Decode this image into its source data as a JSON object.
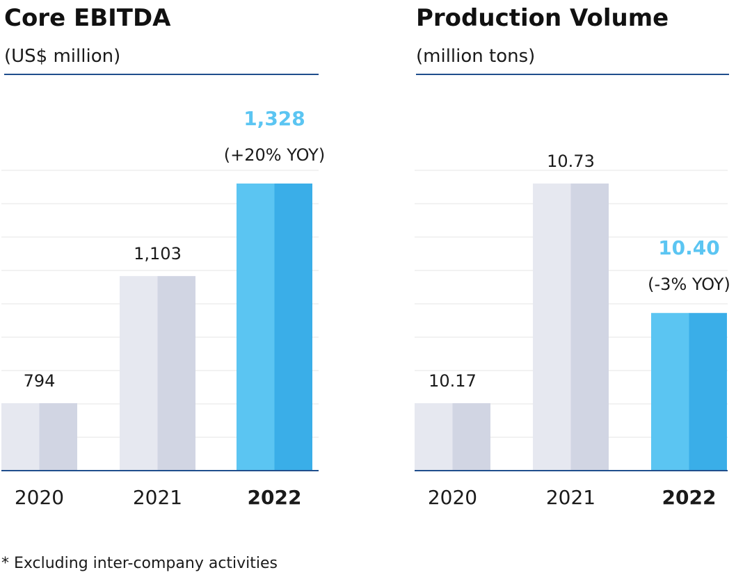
{
  "chart_data": [
    {
      "type": "bar",
      "title": "Core EBITDA",
      "subtitle": "(US$ million)",
      "categories": [
        "2020",
        "2021",
        "2022"
      ],
      "values": [
        794,
        1103,
        1328
      ],
      "value_labels": [
        "794",
        "1,103",
        "1,328"
      ],
      "annotations": [
        "",
        "",
        "(+20% YOY)"
      ],
      "highlight_index": 2,
      "grid": true,
      "colors": {
        "base": "#e6e8f0",
        "base_dark": "#d1d5e3",
        "highlight": "#5bc5f2",
        "highlight_dark": "#3aaee8",
        "axis": "#1f4e8c",
        "grid": "#eeeeee",
        "highlight_text": "#5bc5f2"
      }
    },
    {
      "type": "bar",
      "title": "Production Volume",
      "subtitle": "(million tons)",
      "categories": [
        "2020",
        "2021",
        "2022"
      ],
      "values": [
        10.17,
        10.73,
        10.4
      ],
      "value_labels": [
        "10.17",
        "10.73",
        "10.40"
      ],
      "annotations": [
        "",
        "",
        "(-3% YOY)"
      ],
      "highlight_index": 2,
      "grid": true,
      "colors": {
        "base": "#e6e8f0",
        "base_dark": "#d1d5e3",
        "highlight": "#5bc5f2",
        "highlight_dark": "#3aaee8",
        "axis": "#1f4e8c",
        "grid": "#eeeeee",
        "highlight_text": "#5bc5f2"
      }
    }
  ],
  "footnote": "* Excluding inter-company activities"
}
